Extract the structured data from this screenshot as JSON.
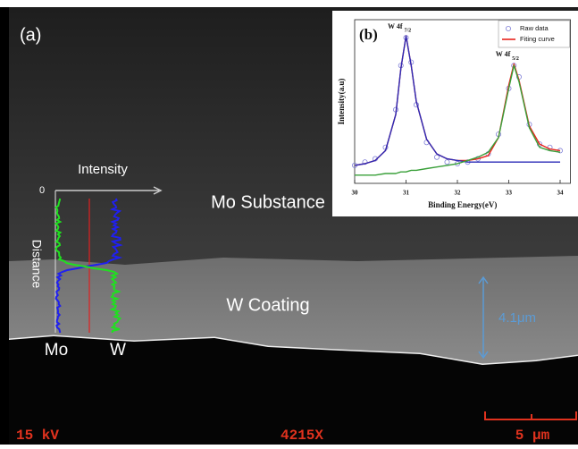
{
  "panel_labels": {
    "a": "(a)",
    "b": "(b)"
  },
  "sem": {
    "profile_axis_label": "Intensity",
    "profile_origin": "0",
    "profile_distance": "Distance",
    "mo_label": "Mo",
    "w_label": "W",
    "substance": "Mo Substance",
    "coating": "W Coating",
    "thickness": "4.1μm",
    "voltage": "15 kV",
    "magnification": "4215X",
    "scale": "5 μm"
  },
  "chart_data": {
    "type": "line",
    "xlabel": "Binding Energy(eV)",
    "ylabel": "Intensity(a.u)",
    "annotations": [
      {
        "text": "W 4f",
        "sub": "7/2"
      },
      {
        "text": "W 4f",
        "sub": "5/2"
      }
    ],
    "x": [
      30.0,
      30.2,
      30.4,
      30.6,
      30.8,
      30.9,
      31.0,
      31.1,
      31.2,
      31.4,
      31.6,
      31.8,
      32.0,
      32.2,
      32.4,
      32.6,
      32.8,
      33.0,
      33.1,
      33.2,
      33.4,
      33.6,
      33.8,
      34.0
    ],
    "xlim": [
      30,
      34.2
    ],
    "xticks": [
      30,
      31,
      32,
      33,
      34
    ],
    "ylim": [
      0,
      100
    ],
    "legend": "upper right",
    "series": [
      {
        "name": "Raw data",
        "color": "#8080d8",
        "marker": "circle",
        "line": false,
        "values": [
          11,
          13,
          15,
          22,
          45,
          72,
          89,
          74,
          48,
          25,
          16,
          13,
          12,
          13,
          15,
          18,
          30,
          58,
          72,
          65,
          36,
          24,
          22,
          20
        ]
      },
      {
        "name": "Fiting curve",
        "color": "#e8231c",
        "values": [
          11,
          12,
          14,
          20,
          42,
          70,
          90,
          72,
          50,
          27,
          18,
          15,
          14,
          14,
          15,
          17,
          28,
          60,
          73,
          63,
          35,
          24,
          21,
          20
        ]
      },
      {
        "color": "#2b2bb8",
        "values": [
          11,
          12,
          14,
          20,
          42,
          70,
          90,
          72,
          50,
          27,
          18,
          15,
          14,
          13,
          13,
          13,
          13,
          13,
          13,
          13,
          13,
          13,
          13,
          13
        ]
      },
      {
        "color": "#3aa03a",
        "values": [
          5,
          5,
          5,
          6,
          6,
          7,
          7,
          8,
          8,
          9,
          10,
          11,
          12,
          14,
          16,
          19,
          28,
          58,
          72,
          62,
          34,
          22,
          20,
          19
        ]
      }
    ]
  }
}
